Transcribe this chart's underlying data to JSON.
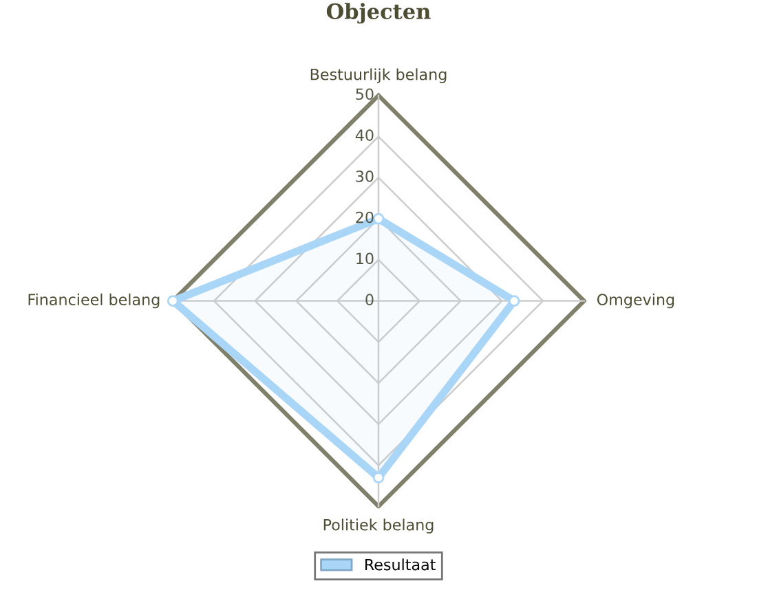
{
  "chart_data": {
    "type": "radar",
    "title": "Objecten",
    "categories": [
      "Bestuurlijk belang",
      "Omgeving",
      "Politiek belang",
      "Financieel belang"
    ],
    "series": [
      {
        "name": "Resultaat",
        "color": "#a9d5f7",
        "values": [
          20,
          33,
          43,
          50
        ]
      }
    ],
    "ylim": [
      0,
      50
    ],
    "yticks": [
      0,
      10,
      20,
      30,
      40,
      50
    ],
    "grid": true,
    "legend": "bottom",
    "marker": "circle"
  }
}
